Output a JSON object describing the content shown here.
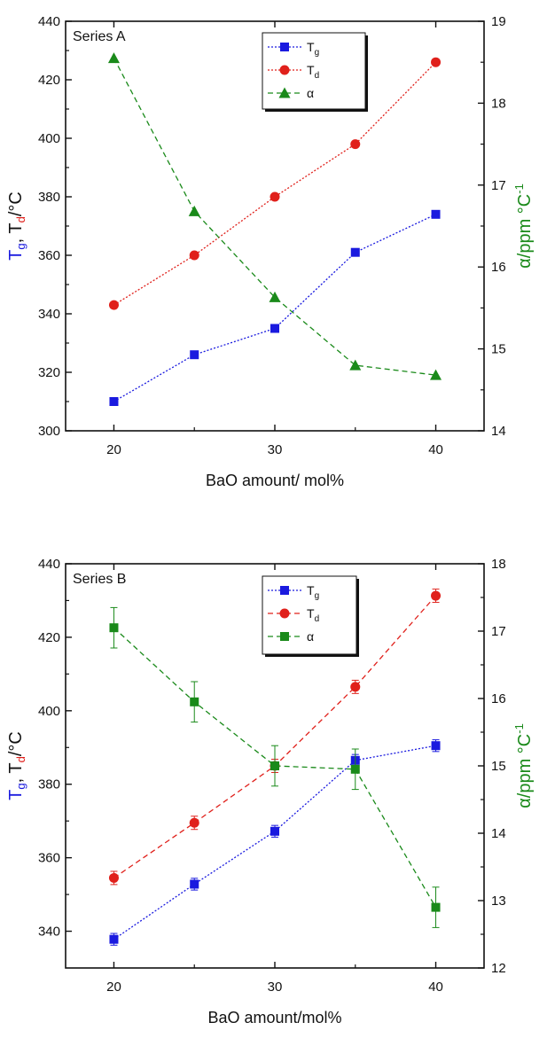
{
  "colors": {
    "tg": "#1a1adf",
    "td": "#e0201b",
    "alpha": "#1a8a1a",
    "axis": "#111111"
  },
  "chart_data": [
    {
      "type": "line",
      "tag": "Series A",
      "xlabel": "BaO amount/ mol%",
      "xlim": [
        17,
        43
      ],
      "xticks": [
        20,
        30,
        40
      ],
      "ylim": [
        300,
        440
      ],
      "yticks": [
        300,
        320,
        340,
        360,
        380,
        400,
        420,
        440
      ],
      "y2lim": [
        14,
        19
      ],
      "y2ticks": [
        14,
        15,
        16,
        17,
        18,
        19
      ],
      "ylabel_parts": [
        "T",
        "g",
        ", T",
        "d",
        "/°C"
      ],
      "y2label": "α/ppm °C",
      "y2label_sup": "-1",
      "legend_position": "top-center",
      "series": [
        {
          "key": "tg",
          "name": "T",
          "sub": "g",
          "axis": "left",
          "marker": "square",
          "dash": "dotted",
          "x": [
            20,
            25,
            30,
            35,
            40
          ],
          "y": [
            310,
            326,
            335,
            361,
            374
          ]
        },
        {
          "key": "td",
          "name": "T",
          "sub": "d",
          "axis": "left",
          "marker": "circle",
          "dash": "dotted",
          "x": [
            20,
            25,
            30,
            35,
            40
          ],
          "y": [
            343,
            360,
            380,
            398,
            426
          ]
        },
        {
          "key": "alpha",
          "name": "α",
          "sub": "",
          "axis": "right",
          "marker": "triangle",
          "dash": "dashed",
          "x": [
            20,
            25,
            30,
            35,
            40
          ],
          "y": [
            18.55,
            16.68,
            15.63,
            14.8,
            14.68
          ]
        }
      ]
    },
    {
      "type": "line",
      "tag": "Series B",
      "xlabel": "BaO amount/mol%",
      "xlim": [
        17,
        43
      ],
      "xticks": [
        20,
        30,
        40
      ],
      "ylim": [
        330,
        440
      ],
      "yticks": [
        340,
        360,
        380,
        400,
        420,
        440
      ],
      "y2lim": [
        12,
        18
      ],
      "y2ticks": [
        12,
        13,
        14,
        15,
        16,
        17,
        18
      ],
      "ylabel_parts": [
        "T",
        "g",
        ", T",
        "d",
        "/°C"
      ],
      "y2label": "α/ppm °C",
      "y2label_sup": "-1",
      "legend_position": "top-center",
      "series": [
        {
          "key": "tg",
          "name": "T",
          "sub": "g",
          "axis": "left",
          "marker": "square",
          "dash": "dotted",
          "x": [
            20,
            25,
            30,
            35,
            40
          ],
          "y": [
            337.8,
            352.8,
            367.2,
            386.5,
            390.5
          ],
          "err": [
            1.6,
            1.6,
            1.6,
            1.6,
            1.6
          ]
        },
        {
          "key": "td",
          "name": "T",
          "sub": "d",
          "axis": "left",
          "marker": "circle",
          "dash": "dashed",
          "x": [
            20,
            25,
            30,
            35,
            40
          ],
          "y": [
            354.5,
            369.5,
            385,
            406.5,
            431.3
          ],
          "err": [
            1.8,
            1.8,
            1.8,
            1.8,
            1.8
          ]
        },
        {
          "key": "alpha",
          "name": "α",
          "sub": "",
          "axis": "right",
          "marker": "square",
          "dash": "dashed",
          "x": [
            20,
            25,
            30,
            35,
            40
          ],
          "y": [
            17.05,
            15.95,
            15.0,
            14.95,
            12.9
          ],
          "err": [
            0.3,
            0.3,
            0.3,
            0.3,
            0.3
          ]
        }
      ]
    }
  ]
}
